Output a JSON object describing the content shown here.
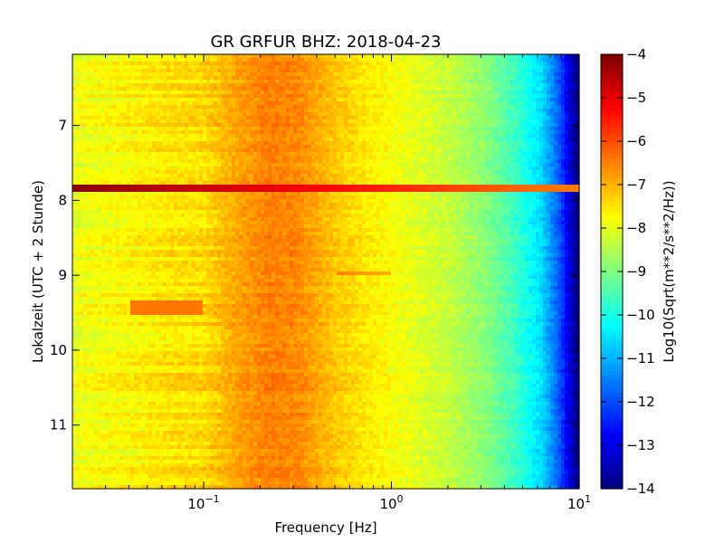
{
  "chart_data": {
    "type": "heatmap",
    "title": "GR GRFUR BHZ: 2018-04-23",
    "xlabel": "Frequency [Hz]",
    "ylabel": "Lokalzeit (UTC + 2 Stunde)",
    "x_scale": "log",
    "xlim": [
      0.02,
      10
    ],
    "x_ticks": [
      {
        "value": 0.1,
        "base": "10",
        "exp": "−1"
      },
      {
        "value": 1,
        "base": "10",
        "exp": "0"
      },
      {
        "value": 10,
        "base": "10",
        "exp": "1"
      }
    ],
    "ylim": [
      6.05,
      11.85
    ],
    "y_inverted": true,
    "y_ticks": [
      7,
      8,
      9,
      10,
      11
    ],
    "colorbar": {
      "label": "Log10(Sqrt(m**2/s**2/Hz))",
      "range": [
        -14,
        -4
      ],
      "ticks": [
        "−4",
        "−5",
        "−6",
        "−7",
        "−8",
        "−9",
        "−10",
        "−11",
        "−12",
        "−13",
        "−14"
      ],
      "colormap": "jet"
    },
    "background_profile": {
      "log10_freq": [
        -1.7,
        -1.4,
        -1.2,
        -1.0,
        -0.8,
        -0.65,
        -0.5,
        -0.3,
        0.0,
        0.3,
        0.5,
        0.65,
        0.8,
        0.9,
        0.97,
        1.0
      ],
      "value": [
        -7.9,
        -7.7,
        -7.5,
        -7.4,
        -6.8,
        -6.5,
        -6.6,
        -7.2,
        -7.8,
        -8.3,
        -8.9,
        -9.6,
        -10.6,
        -12.0,
        -13.6,
        -14.0
      ]
    },
    "events": [
      {
        "time_start": 7.78,
        "time_end": 7.87,
        "freq_min": 0.02,
        "freq_max": 10,
        "value_low_freq": -4.1,
        "value_high_freq": -6.5
      },
      {
        "time_start": 9.35,
        "time_end": 9.55,
        "freq_min": 0.04,
        "freq_max": 0.1,
        "value_low_freq": -6.4,
        "value_high_freq": -6.4
      },
      {
        "time_start": 8.95,
        "time_end": 9.0,
        "freq_min": 0.5,
        "freq_max": 1.0,
        "value_low_freq": -6.5,
        "value_high_freq": -7.0
      }
    ]
  }
}
